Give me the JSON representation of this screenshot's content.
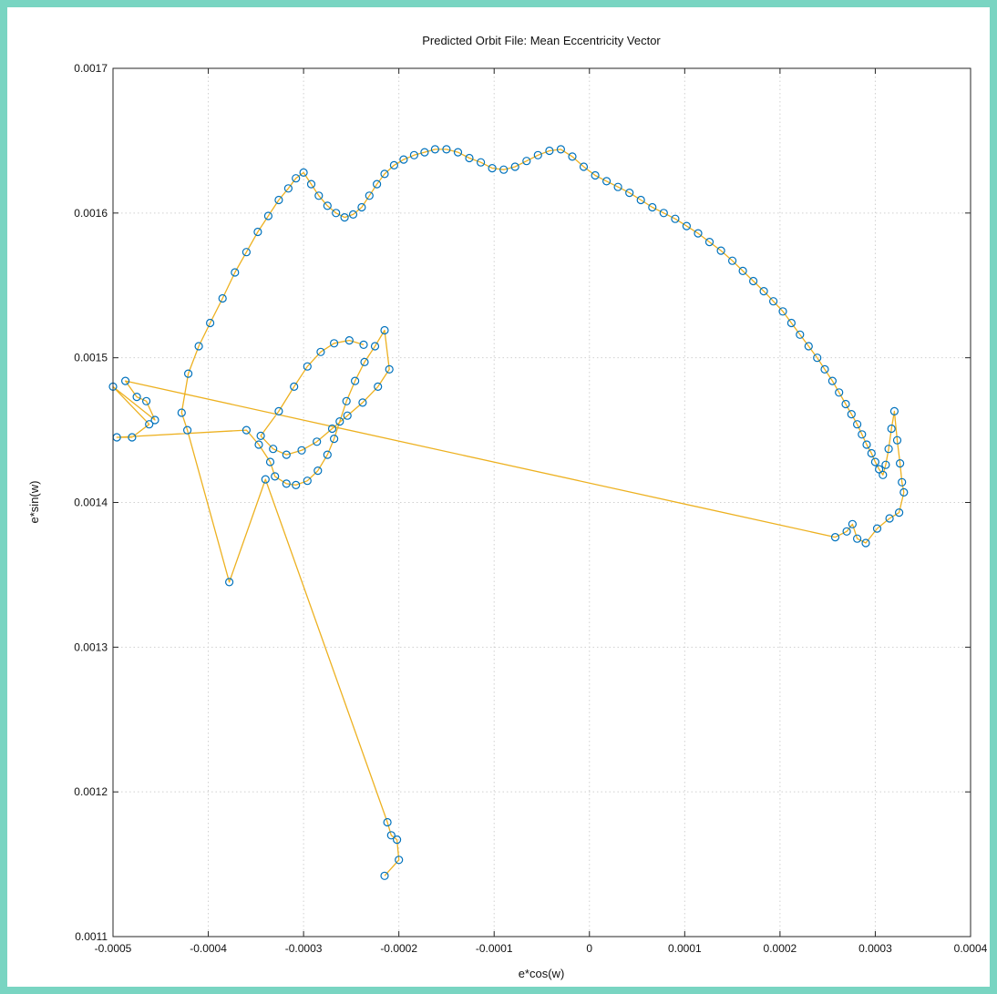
{
  "chart_data": {
    "type": "scatter",
    "title": "Predicted Orbit File: Mean Eccentricity Vector",
    "xlabel": "e*cos(w)",
    "ylabel": "e*sin(w)",
    "xlim": [
      -0.0005,
      0.0004
    ],
    "ylim": [
      0.0011,
      0.0017
    ],
    "xticks": [
      "-0.0005",
      "-0.0004",
      "-0.0003",
      "-0.0002",
      "-0.0001",
      "0",
      "0.0001",
      "0.0002",
      "0.0003",
      "0.0004"
    ],
    "yticks": [
      "0.0011",
      "0.0012",
      "0.0013",
      "0.0014",
      "0.0015",
      "0.0016",
      "0.0017"
    ],
    "grid": true,
    "legend": "none",
    "colors": {
      "line": "#edb120",
      "marker": "#0072bd"
    },
    "series": [
      {
        "x": [
          -0.000215,
          -0.0002,
          -0.000202,
          -0.000208,
          -0.000212,
          -0.00034,
          -0.000378,
          -0.000422,
          -0.000428,
          -0.000421,
          -0.00041,
          -0.000398,
          -0.000385,
          -0.000372,
          -0.00036,
          -0.000348,
          -0.000337,
          -0.000326,
          -0.000316,
          -0.000308,
          -0.0003,
          -0.000292,
          -0.000284,
          -0.000275,
          -0.000266,
          -0.000257,
          -0.000248,
          -0.000239,
          -0.000231,
          -0.000223,
          -0.000215,
          -0.000205,
          -0.000195,
          -0.000184,
          -0.000173,
          -0.000162,
          -0.00015,
          -0.000138,
          -0.000126,
          -0.000114,
          -0.000102,
          -9e-05,
          -7.8e-05,
          -6.6e-05,
          -5.4e-05,
          -4.2e-05,
          -3e-05,
          -1.8e-05,
          -6e-06,
          6e-06,
          1.8e-05,
          3e-05,
          4.2e-05,
          5.4e-05,
          6.6e-05,
          7.8e-05,
          9e-05,
          0.000102,
          0.000114,
          0.000126,
          0.000138,
          0.00015,
          0.000161,
          0.000172,
          0.000183,
          0.000193,
          0.000203,
          0.000212,
          0.000221,
          0.00023,
          0.000239,
          0.000247,
          0.000255,
          0.000262,
          0.000269,
          0.000275,
          0.000281,
          0.000286,
          0.000291,
          0.000296,
          0.0003,
          0.000304,
          0.000308,
          0.000311,
          0.000314,
          0.000317,
          0.00032,
          0.000323,
          0.000326,
          0.000328,
          0.00033,
          0.000325,
          0.000315,
          0.000302,
          0.00029,
          0.000281,
          0.000276,
          0.00027,
          0.000258,
          -0.000487,
          -0.000475,
          -0.000465,
          -0.000456,
          -0.0005,
          -0.000462,
          -0.00048,
          -0.000496,
          -0.00036,
          -0.000347,
          -0.000335,
          -0.00033,
          -0.000318,
          -0.000308,
          -0.000296,
          -0.000285,
          -0.000275,
          -0.000268,
          -0.000262,
          -0.000255,
          -0.000246,
          -0.000236,
          -0.000225,
          -0.000215,
          -0.00021,
          -0.000222,
          -0.000238,
          -0.000254,
          -0.00027,
          -0.000286,
          -0.000302,
          -0.000318,
          -0.000332,
          -0.000345,
          -0.000326,
          -0.00031,
          -0.000296,
          -0.000282,
          -0.000268,
          -0.000252,
          -0.000237
        ],
        "y": [
          0.001142,
          0.001153,
          0.001167,
          0.00117,
          0.001179,
          0.001416,
          0.001345,
          0.00145,
          0.001462,
          0.001489,
          0.001508,
          0.001524,
          0.001541,
          0.001559,
          0.001573,
          0.001587,
          0.001598,
          0.001609,
          0.001617,
          0.001624,
          0.001628,
          0.00162,
          0.001612,
          0.001605,
          0.0016,
          0.001597,
          0.001599,
          0.001604,
          0.001612,
          0.00162,
          0.001627,
          0.001633,
          0.001637,
          0.00164,
          0.001642,
          0.001644,
          0.001644,
          0.001642,
          0.001638,
          0.001635,
          0.001631,
          0.00163,
          0.001632,
          0.001636,
          0.00164,
          0.001643,
          0.001644,
          0.001639,
          0.001632,
          0.001626,
          0.001622,
          0.001618,
          0.001614,
          0.001609,
          0.001604,
          0.0016,
          0.001596,
          0.001591,
          0.001586,
          0.00158,
          0.001574,
          0.001567,
          0.00156,
          0.001553,
          0.001546,
          0.001539,
          0.001532,
          0.001524,
          0.001516,
          0.001508,
          0.0015,
          0.001492,
          0.001484,
          0.001476,
          0.001468,
          0.001461,
          0.001454,
          0.001447,
          0.00144,
          0.001434,
          0.001428,
          0.001423,
          0.001419,
          0.001426,
          0.001437,
          0.001451,
          0.001463,
          0.001443,
          0.001427,
          0.001414,
          0.001407,
          0.001393,
          0.001389,
          0.001382,
          0.001372,
          0.001375,
          0.001385,
          0.00138,
          0.001376,
          0.001484,
          0.001473,
          0.00147,
          0.001457,
          0.00148,
          0.001454,
          0.001445,
          0.001445,
          0.00145,
          0.00144,
          0.001428,
          0.001418,
          0.001413,
          0.001412,
          0.001415,
          0.001422,
          0.001433,
          0.001444,
          0.001456,
          0.00147,
          0.001484,
          0.001497,
          0.001508,
          0.001519,
          0.001492,
          0.00148,
          0.001469,
          0.00146,
          0.001451,
          0.001442,
          0.001436,
          0.001433,
          0.001437,
          0.001446,
          0.001463,
          0.00148,
          0.001494,
          0.001504,
          0.00151,
          0.001512,
          0.001509
        ]
      }
    ]
  }
}
